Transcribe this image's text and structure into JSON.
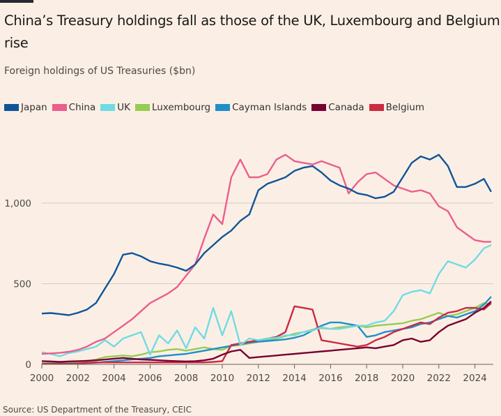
{
  "header": {
    "title": "China’s Treasury holdings fall as those of the UK, Luxembourg and Belgium rise",
    "subtitle": "Foreign holdings of US Treasuries ($bn)"
  },
  "footer": {
    "source": "Source: US Department of the Treasury, CEIC"
  },
  "chart_data": {
    "type": "line",
    "title": "China’s Treasury holdings fall as those of the UK, Luxembourg and Belgium rise",
    "subtitle": "Foreign holdings of US Treasuries ($bn)",
    "xlabel": "",
    "ylabel": "",
    "xlim": [
      2000,
      2025
    ],
    "ylim": [
      0,
      1350
    ],
    "x_ticks": [
      2000,
      2002,
      2004,
      2006,
      2008,
      2010,
      2012,
      2014,
      2016,
      2018,
      2020,
      2022,
      2024
    ],
    "x_tick_labels": [
      "2000",
      "2002",
      "2004",
      "2006",
      "2008",
      "2010",
      "2012",
      "2014",
      "2016",
      "2018",
      "2020",
      "2022",
      "2024"
    ],
    "y_ticks": [
      0,
      500,
      1000
    ],
    "y_tick_labels": [
      "0",
      "500",
      "1,000"
    ],
    "grid": "horizontal",
    "legend_position": "top-left",
    "x": [
      2000,
      2000.5,
      2001,
      2001.5,
      2002,
      2002.5,
      2003,
      2003.5,
      2004,
      2004.5,
      2005,
      2005.5,
      2006,
      2006.5,
      2007,
      2007.5,
      2008,
      2008.5,
      2009,
      2009.5,
      2010,
      2010.5,
      2011,
      2011.5,
      2012,
      2012.5,
      2013,
      2013.5,
      2014,
      2014.5,
      2015,
      2015.5,
      2016,
      2016.5,
      2017,
      2017.5,
      2018,
      2018.5,
      2019,
      2019.5,
      2020,
      2020.5,
      2021,
      2021.5,
      2022,
      2022.5,
      2023,
      2023.5,
      2024,
      2024.5,
      2024.9
    ],
    "series": [
      {
        "name": "Japan",
        "color": "#0f5499",
        "values": [
          315,
          318,
          312,
          305,
          320,
          340,
          380,
          470,
          560,
          680,
          690,
          670,
          640,
          625,
          615,
          600,
          580,
          620,
          690,
          740,
          790,
          830,
          890,
          930,
          1080,
          1120,
          1140,
          1160,
          1200,
          1220,
          1230,
          1190,
          1140,
          1110,
          1090,
          1060,
          1050,
          1030,
          1040,
          1070,
          1160,
          1250,
          1290,
          1270,
          1300,
          1230,
          1100,
          1100,
          1120,
          1150,
          1070
        ]
      },
      {
        "name": "China",
        "color": "#eb5e8d",
        "values": [
          65,
          68,
          72,
          78,
          90,
          110,
          140,
          160,
          200,
          240,
          280,
          330,
          380,
          410,
          440,
          480,
          550,
          620,
          780,
          930,
          870,
          1160,
          1270,
          1160,
          1160,
          1180,
          1270,
          1300,
          1260,
          1250,
          1240,
          1260,
          1240,
          1220,
          1060,
          1130,
          1180,
          1190,
          1150,
          1110,
          1090,
          1070,
          1080,
          1060,
          980,
          950,
          850,
          810,
          770,
          760,
          760
        ]
      },
      {
        "name": "UK",
        "color": "#70dbe3",
        "values": [
          75,
          65,
          50,
          70,
          80,
          95,
          110,
          150,
          110,
          160,
          180,
          200,
          60,
          180,
          130,
          210,
          100,
          230,
          160,
          350,
          180,
          330,
          120,
          160,
          150,
          160,
          165,
          180,
          180,
          200,
          210,
          230,
          220,
          220,
          230,
          240,
          240,
          260,
          270,
          330,
          430,
          450,
          460,
          440,
          560,
          640,
          620,
          600,
          650,
          720,
          740
        ]
      },
      {
        "name": "Luxembourg",
        "color": "#96cc52",
        "values": [
          5,
          8,
          10,
          12,
          15,
          20,
          30,
          45,
          50,
          55,
          50,
          60,
          75,
          80,
          90,
          95,
          85,
          95,
          105,
          95,
          90,
          115,
          120,
          130,
          140,
          150,
          160,
          175,
          190,
          200,
          215,
          225,
          220,
          230,
          235,
          240,
          230,
          240,
          245,
          250,
          255,
          270,
          280,
          300,
          320,
          300,
          310,
          330,
          350,
          380,
          370
        ]
      },
      {
        "name": "Cayman Islands",
        "color": "#1f8fca",
        "values": [
          5,
          5,
          5,
          5,
          5,
          8,
          10,
          15,
          20,
          25,
          30,
          35,
          40,
          50,
          55,
          60,
          65,
          75,
          85,
          95,
          105,
          115,
          125,
          135,
          140,
          145,
          150,
          155,
          165,
          180,
          210,
          240,
          260,
          260,
          250,
          240,
          170,
          180,
          200,
          210,
          220,
          230,
          250,
          260,
          280,
          300,
          290,
          310,
          330,
          370,
          420
        ]
      },
      {
        "name": "Canada",
        "color": "#780032",
        "values": [
          20,
          18,
          15,
          18,
          20,
          22,
          25,
          30,
          35,
          40,
          35,
          30,
          28,
          25,
          22,
          20,
          18,
          20,
          25,
          35,
          60,
          80,
          90,
          40,
          45,
          50,
          55,
          60,
          65,
          70,
          75,
          80,
          85,
          90,
          95,
          100,
          105,
          100,
          110,
          120,
          150,
          160,
          140,
          150,
          200,
          240,
          260,
          280,
          320,
          350,
          390
        ]
      },
      {
        "name": "Belgium",
        "color": "#cc2a41",
        "values": [
          3,
          3,
          3,
          3,
          5,
          10,
          12,
          12,
          12,
          12,
          12,
          12,
          12,
          12,
          12,
          12,
          12,
          12,
          12,
          15,
          20,
          120,
          130,
          140,
          150,
          160,
          170,
          200,
          360,
          350,
          340,
          150,
          140,
          130,
          120,
          110,
          120,
          150,
          170,
          200,
          220,
          240,
          260,
          250,
          290,
          320,
          330,
          350,
          350,
          340,
          380
        ]
      }
    ]
  }
}
